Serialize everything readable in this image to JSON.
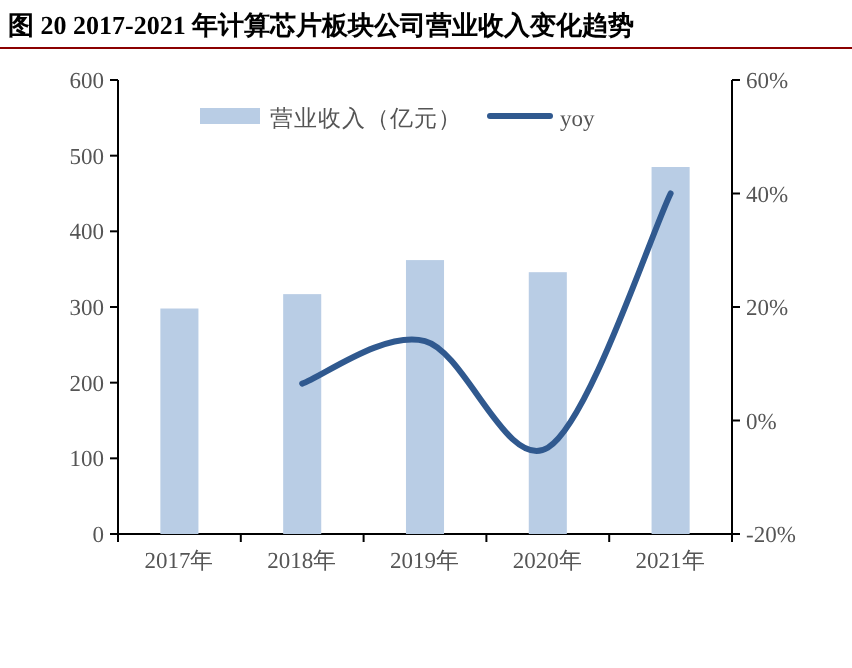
{
  "chart_data": {
    "type": "bar",
    "title": "图 20 2017-2021 年计算芯片板块公司营业收入变化趋势",
    "categories": [
      "2017年",
      "2018年",
      "2019年",
      "2020年",
      "2021年"
    ],
    "series": [
      {
        "name": "营业收入（亿元）",
        "color": "#b9cde5",
        "values": [
          298,
          317,
          362,
          346,
          485
        ]
      },
      {
        "name": "yoy",
        "type": "line",
        "axis": "y2",
        "color": "#30598f",
        "values": [
          null,
          6.5,
          14,
          -4.8,
          40
        ]
      }
    ],
    "ylim": [
      0,
      600
    ],
    "yticks": [
      0,
      100,
      200,
      300,
      400,
      500,
      600
    ],
    "y2lim": [
      -20,
      60
    ],
    "y2ticks": [
      {
        "value": -20,
        "label": "-20%"
      },
      {
        "value": 0,
        "label": "0%"
      },
      {
        "value": 20,
        "label": "20%"
      },
      {
        "value": 40,
        "label": "40%"
      },
      {
        "value": 60,
        "label": "60%"
      }
    ],
    "legend": "top",
    "grid": false
  }
}
